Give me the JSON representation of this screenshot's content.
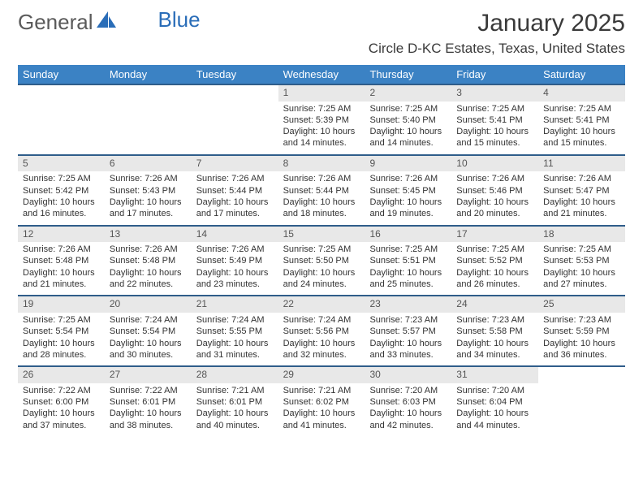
{
  "brand": {
    "part1": "General",
    "part2": "Blue"
  },
  "title": "January 2025",
  "location": "Circle D-KC Estates, Texas, United States",
  "colors": {
    "header_bg": "#3b82c4",
    "header_text": "#ffffff",
    "row_border": "#2f5d8a",
    "daynum_bg": "#e8e8e8",
    "brand_gray": "#5a5a5a",
    "brand_blue": "#2a6db8",
    "body_text": "#333333"
  },
  "weekdays": [
    "Sunday",
    "Monday",
    "Tuesday",
    "Wednesday",
    "Thursday",
    "Friday",
    "Saturday"
  ],
  "weeks": [
    [
      null,
      null,
      null,
      {
        "n": "1",
        "sr": "7:25 AM",
        "ss": "5:39 PM",
        "dl": "10 hours and 14 minutes."
      },
      {
        "n": "2",
        "sr": "7:25 AM",
        "ss": "5:40 PM",
        "dl": "10 hours and 14 minutes."
      },
      {
        "n": "3",
        "sr": "7:25 AM",
        "ss": "5:41 PM",
        "dl": "10 hours and 15 minutes."
      },
      {
        "n": "4",
        "sr": "7:25 AM",
        "ss": "5:41 PM",
        "dl": "10 hours and 15 minutes."
      }
    ],
    [
      {
        "n": "5",
        "sr": "7:25 AM",
        "ss": "5:42 PM",
        "dl": "10 hours and 16 minutes."
      },
      {
        "n": "6",
        "sr": "7:26 AM",
        "ss": "5:43 PM",
        "dl": "10 hours and 17 minutes."
      },
      {
        "n": "7",
        "sr": "7:26 AM",
        "ss": "5:44 PM",
        "dl": "10 hours and 17 minutes."
      },
      {
        "n": "8",
        "sr": "7:26 AM",
        "ss": "5:44 PM",
        "dl": "10 hours and 18 minutes."
      },
      {
        "n": "9",
        "sr": "7:26 AM",
        "ss": "5:45 PM",
        "dl": "10 hours and 19 minutes."
      },
      {
        "n": "10",
        "sr": "7:26 AM",
        "ss": "5:46 PM",
        "dl": "10 hours and 20 minutes."
      },
      {
        "n": "11",
        "sr": "7:26 AM",
        "ss": "5:47 PM",
        "dl": "10 hours and 21 minutes."
      }
    ],
    [
      {
        "n": "12",
        "sr": "7:26 AM",
        "ss": "5:48 PM",
        "dl": "10 hours and 21 minutes."
      },
      {
        "n": "13",
        "sr": "7:26 AM",
        "ss": "5:48 PM",
        "dl": "10 hours and 22 minutes."
      },
      {
        "n": "14",
        "sr": "7:26 AM",
        "ss": "5:49 PM",
        "dl": "10 hours and 23 minutes."
      },
      {
        "n": "15",
        "sr": "7:25 AM",
        "ss": "5:50 PM",
        "dl": "10 hours and 24 minutes."
      },
      {
        "n": "16",
        "sr": "7:25 AM",
        "ss": "5:51 PM",
        "dl": "10 hours and 25 minutes."
      },
      {
        "n": "17",
        "sr": "7:25 AM",
        "ss": "5:52 PM",
        "dl": "10 hours and 26 minutes."
      },
      {
        "n": "18",
        "sr": "7:25 AM",
        "ss": "5:53 PM",
        "dl": "10 hours and 27 minutes."
      }
    ],
    [
      {
        "n": "19",
        "sr": "7:25 AM",
        "ss": "5:54 PM",
        "dl": "10 hours and 28 minutes."
      },
      {
        "n": "20",
        "sr": "7:24 AM",
        "ss": "5:54 PM",
        "dl": "10 hours and 30 minutes."
      },
      {
        "n": "21",
        "sr": "7:24 AM",
        "ss": "5:55 PM",
        "dl": "10 hours and 31 minutes."
      },
      {
        "n": "22",
        "sr": "7:24 AM",
        "ss": "5:56 PM",
        "dl": "10 hours and 32 minutes."
      },
      {
        "n": "23",
        "sr": "7:23 AM",
        "ss": "5:57 PM",
        "dl": "10 hours and 33 minutes."
      },
      {
        "n": "24",
        "sr": "7:23 AM",
        "ss": "5:58 PM",
        "dl": "10 hours and 34 minutes."
      },
      {
        "n": "25",
        "sr": "7:23 AM",
        "ss": "5:59 PM",
        "dl": "10 hours and 36 minutes."
      }
    ],
    [
      {
        "n": "26",
        "sr": "7:22 AM",
        "ss": "6:00 PM",
        "dl": "10 hours and 37 minutes."
      },
      {
        "n": "27",
        "sr": "7:22 AM",
        "ss": "6:01 PM",
        "dl": "10 hours and 38 minutes."
      },
      {
        "n": "28",
        "sr": "7:21 AM",
        "ss": "6:01 PM",
        "dl": "10 hours and 40 minutes."
      },
      {
        "n": "29",
        "sr": "7:21 AM",
        "ss": "6:02 PM",
        "dl": "10 hours and 41 minutes."
      },
      {
        "n": "30",
        "sr": "7:20 AM",
        "ss": "6:03 PM",
        "dl": "10 hours and 42 minutes."
      },
      {
        "n": "31",
        "sr": "7:20 AM",
        "ss": "6:04 PM",
        "dl": "10 hours and 44 minutes."
      },
      null
    ]
  ],
  "labels": {
    "sunrise": "Sunrise:",
    "sunset": "Sunset:",
    "daylight": "Daylight:"
  }
}
